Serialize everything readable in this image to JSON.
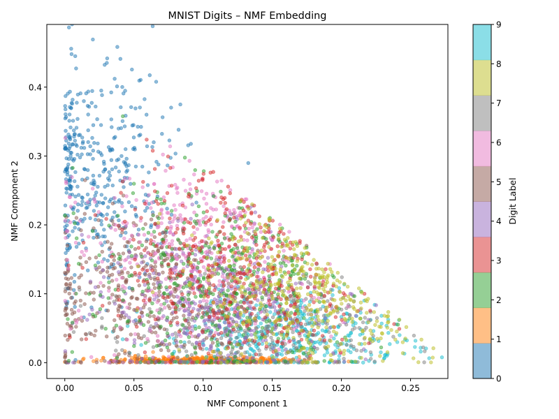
{
  "chart_data": {
    "type": "scatter",
    "title": "MNIST Digits – NMF Embedding",
    "xlabel": "NMF Component 1",
    "ylabel": "NMF Component 2",
    "xlim": [
      -0.013,
      0.277
    ],
    "ylim": [
      -0.023,
      0.491
    ],
    "x_ticks": [
      0.0,
      0.05,
      0.1,
      0.15,
      0.2,
      0.25
    ],
    "x_tick_labels": [
      "0.00",
      "0.05",
      "0.10",
      "0.15",
      "0.20",
      "0.25"
    ],
    "y_ticks": [
      0.0,
      0.1,
      0.2,
      0.3,
      0.4
    ],
    "y_tick_labels": [
      "0.0",
      "0.1",
      "0.2",
      "0.3",
      "0.4"
    ],
    "grid": false,
    "marker_alpha": 0.5,
    "colorbar": {
      "label": "Digit Label",
      "ticks": [
        "0",
        "1",
        "2",
        "3",
        "4",
        "5",
        "6",
        "7",
        "8",
        "9"
      ],
      "colormap": "tab10",
      "colors": [
        "#1f77b4",
        "#ff7f0e",
        "#2ca02c",
        "#d62728",
        "#9467bd",
        "#8c564b",
        "#e377c2",
        "#7f7f7f",
        "#bcbd22",
        "#17becf"
      ]
    },
    "series": [
      {
        "label": 0,
        "x_center": 0.02,
        "x_spread": 0.03,
        "y_center": 0.27,
        "y_spread": 0.09
      },
      {
        "label": 1,
        "x_center": 0.1,
        "x_spread": 0.035,
        "y_center": 0.003,
        "y_spread": 0.003
      },
      {
        "label": 2,
        "x_center": 0.11,
        "x_spread": 0.045,
        "y_center": 0.12,
        "y_spread": 0.07
      },
      {
        "label": 3,
        "x_center": 0.12,
        "x_spread": 0.04,
        "y_center": 0.14,
        "y_spread": 0.07
      },
      {
        "label": 4,
        "x_center": 0.11,
        "x_spread": 0.045,
        "y_center": 0.09,
        "y_spread": 0.06
      },
      {
        "label": 5,
        "x_center": 0.06,
        "x_spread": 0.04,
        "y_center": 0.1,
        "y_spread": 0.06
      },
      {
        "label": 6,
        "x_center": 0.09,
        "x_spread": 0.045,
        "y_center": 0.16,
        "y_spread": 0.07
      },
      {
        "label": 7,
        "x_center": 0.14,
        "x_spread": 0.05,
        "y_center": 0.05,
        "y_spread": 0.04
      },
      {
        "label": 8,
        "x_center": 0.17,
        "x_spread": 0.04,
        "y_center": 0.12,
        "y_spread": 0.06
      },
      {
        "label": 9,
        "x_center": 0.16,
        "x_spread": 0.045,
        "y_center": 0.04,
        "y_spread": 0.03
      }
    ]
  }
}
